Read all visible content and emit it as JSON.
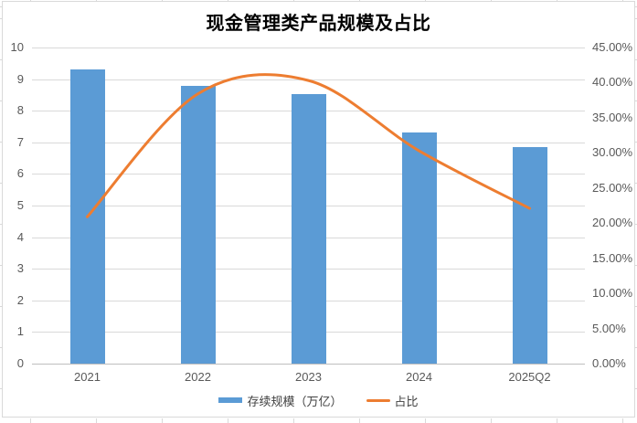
{
  "title": "现金管理类产品规模及占比",
  "chart_data": {
    "type": "bar",
    "subtype": "combo bar + smoothed line, dual axis",
    "title": "现金管理类产品规模及占比",
    "categories": [
      "2021",
      "2022",
      "2023",
      "2024",
      "2025Q2"
    ],
    "series": [
      {
        "name": "存续规模（万亿）",
        "type": "bar",
        "axis": "left",
        "color": "#5B9BD5",
        "values": [
          9.3,
          8.8,
          8.54,
          7.3,
          6.85
        ]
      },
      {
        "name": "占比",
        "type": "line",
        "smooth": true,
        "axis": "right",
        "color": "#ED7D31",
        "unit": "%",
        "values": [
          20.9,
          38.4,
          40.3,
          30.3,
          22.1
        ]
      }
    ],
    "left_axis": {
      "min": 0,
      "max": 10,
      "step": 1,
      "tick_labels": [
        "0",
        "1",
        "2",
        "3",
        "4",
        "5",
        "6",
        "7",
        "8",
        "9",
        "10"
      ]
    },
    "right_axis": {
      "min": 0,
      "max": 45,
      "step": 5,
      "tick_labels": [
        "0.00%",
        "5.00%",
        "10.00%",
        "15.00%",
        "20.00%",
        "25.00%",
        "30.00%",
        "35.00%",
        "40.00%",
        "45.00%"
      ]
    },
    "grid": "horizontal gridlines aligned to left axis ticks",
    "legend_position": "bottom-center"
  },
  "colors": {
    "bar": "#5B9BD5",
    "line": "#ED7D31",
    "grid": "#D9D9D9",
    "axis_line": "#BFBFBF",
    "tick_text": "#595959",
    "category_text": "#595959",
    "legend_text": "#404040",
    "title_text": "#000000",
    "frame_border": "#D9D9D9",
    "background": "#FFFFFF"
  }
}
